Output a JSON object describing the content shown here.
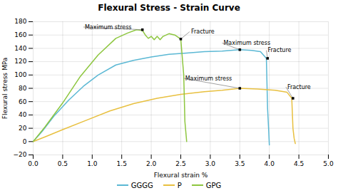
{
  "chart_data": {
    "type": "line",
    "title": "Flexural Stress - Strain Curve",
    "xlabel": "Flexural strain %",
    "ylabel": "Flexural stress MPa",
    "xlim": [
      0,
      5
    ],
    "ylim": [
      -20,
      180
    ],
    "xticks": [
      {
        "value": 0,
        "label": "0.0"
      },
      {
        "value": 0.5,
        "label": "0.5"
      },
      {
        "value": 1,
        "label": "1.0"
      },
      {
        "value": 1.5,
        "label": "1.5"
      },
      {
        "value": 2,
        "label": "2.0"
      },
      {
        "value": 2.5,
        "label": "2.5"
      },
      {
        "value": 3,
        "label": "3.0"
      },
      {
        "value": 3.5,
        "label": "3.5"
      },
      {
        "value": 4,
        "label": "4.0"
      },
      {
        "value": 4.5,
        "label": "4.5"
      },
      {
        "value": 5,
        "label": "5.0"
      }
    ],
    "yticks": [
      -20,
      0,
      20,
      40,
      60,
      80,
      100,
      120,
      140,
      160,
      180
    ],
    "grid": true,
    "legend": "bottom",
    "series": [
      {
        "name": "GGGG",
        "color": "#5bb8d4",
        "x": [
          0,
          0.15,
          0.35,
          0.6,
          0.85,
          1.1,
          1.4,
          1.7,
          2.0,
          2.3,
          2.6,
          2.9,
          3.2,
          3.5,
          3.7,
          3.85,
          3.95,
          3.97,
          3.99,
          4.0
        ],
        "values": [
          0,
          15,
          38,
          62,
          83,
          100,
          115,
          122,
          127,
          131,
          133,
          135,
          136,
          138,
          137,
          135,
          125,
          50,
          15,
          -5
        ]
      },
      {
        "name": "P",
        "color": "#e8c040",
        "x": [
          0,
          0.2,
          0.5,
          0.9,
          1.3,
          1.7,
          2.1,
          2.5,
          2.9,
          3.2,
          3.5,
          3.8,
          4.1,
          4.3,
          4.38,
          4.4,
          4.42,
          4.44
        ],
        "values": [
          0,
          7,
          18,
          32,
          46,
          57,
          65,
          71,
          75,
          77,
          80,
          79,
          77,
          74,
          65,
          20,
          5,
          -3
        ]
      },
      {
        "name": "GPG",
        "color": "#8dc63f",
        "x": [
          0,
          0.2,
          0.5,
          0.8,
          1.1,
          1.4,
          1.6,
          1.75,
          1.85,
          1.9,
          1.95,
          2.0,
          2.05,
          2.1,
          2.15,
          2.2,
          2.3,
          2.4,
          2.5,
          2.55,
          2.57,
          2.6
        ],
        "values": [
          0,
          22,
          58,
          98,
          130,
          155,
          163,
          168,
          167,
          160,
          155,
          158,
          153,
          158,
          153,
          158,
          162,
          160,
          154,
          100,
          30,
          0
        ]
      }
    ],
    "annotations": [
      {
        "text": "Maximum stress",
        "x": 1.85,
        "y": 168,
        "tx": 0.85,
        "ty": 172
      },
      {
        "text": "Fracture",
        "x": 2.5,
        "y": 154,
        "tx": 2.65,
        "ty": 165
      },
      {
        "text": "Maximum stress",
        "x": 3.5,
        "y": 138,
        "tx": 3.2,
        "ty": 148
      },
      {
        "text": "Fracture",
        "x": 3.97,
        "y": 125,
        "tx": 3.95,
        "ty": 137
      },
      {
        "text": "Maximum stress",
        "x": 3.5,
        "y": 80,
        "tx": 2.55,
        "ty": 95
      },
      {
        "text": "Fracture",
        "x": 4.4,
        "y": 65,
        "tx": 4.28,
        "ty": 82
      }
    ]
  }
}
